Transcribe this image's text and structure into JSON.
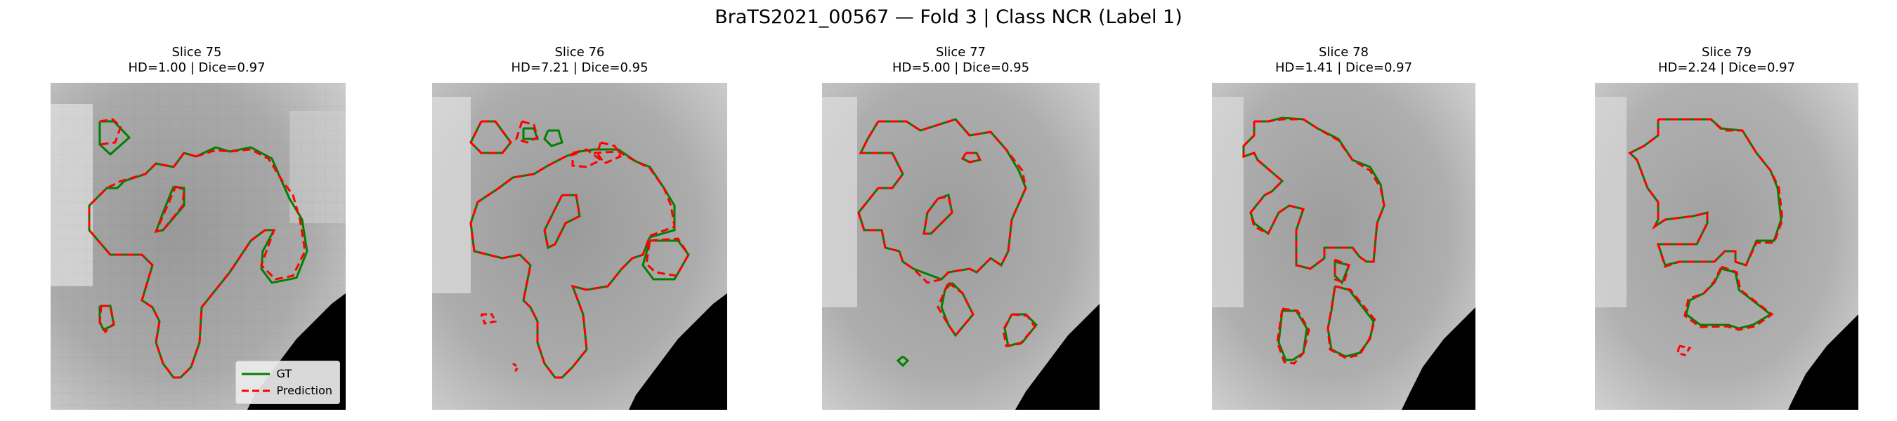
{
  "figure": {
    "title": "BraTS2021_00567 — Fold 3 | Class NCR (Label 1)"
  },
  "legend": {
    "gt_label": "GT",
    "pred_label": "Prediction",
    "gt_color": "#008000",
    "pred_color": "#ff0000"
  },
  "chart_data": {
    "type": "image-grid",
    "series": [
      {
        "name": "GT",
        "color": "#008000",
        "style": "solid"
      },
      {
        "name": "Prediction",
        "color": "#ff0000",
        "style": "dashed"
      }
    ],
    "panels": [
      {
        "slice_title": "Slice 75",
        "metrics": "HD=1.00 | Dice=0.97",
        "slice": 75,
        "hd": 1.0,
        "dice": 0.97
      },
      {
        "slice_title": "Slice 76",
        "metrics": "HD=7.21 | Dice=0.95",
        "slice": 76,
        "hd": 7.21,
        "dice": 0.95
      },
      {
        "slice_title": "Slice 77",
        "metrics": "HD=5.00 | Dice=0.95",
        "slice": 77,
        "hd": 5.0,
        "dice": 0.95
      },
      {
        "slice_title": "Slice 78",
        "metrics": "HD=1.41 | Dice=0.97",
        "slice": 78,
        "hd": 1.41,
        "dice": 0.97
      },
      {
        "slice_title": "Slice 79",
        "metrics": "HD=2.24 | Dice=0.97",
        "slice": 79,
        "hd": 2.24,
        "dice": 0.97
      }
    ]
  }
}
